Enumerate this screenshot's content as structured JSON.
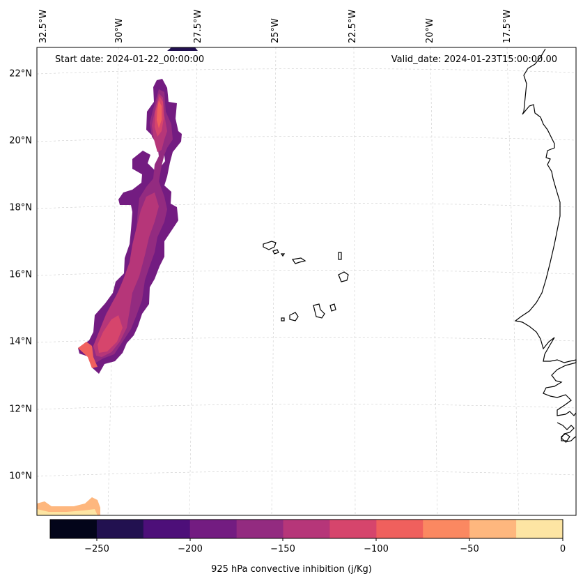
{
  "map": {
    "start_date": "Start date: 2024-01-22_00:00:00",
    "valid_date": "Valid_date: 2024-01-23T15:00:00.00",
    "lat_labels": [
      "22°N",
      "20°N",
      "18°N",
      "16°N",
      "14°N",
      "12°N",
      "10°N"
    ],
    "lon_labels": [
      "32.5°W",
      "30°W",
      "27.5°W",
      "25°W",
      "22.5°W",
      "20°W",
      "17.5°W"
    ],
    "coastline_color": "#000000",
    "grid_color": "#cccccc"
  },
  "colorbar": {
    "title": "925 hPa convective inhibition (j/Kg)",
    "tick_labels": [
      "−250",
      "−200",
      "−150",
      "−100",
      "−50",
      "0"
    ],
    "levels": [
      -275,
      -250,
      -225,
      -200,
      -175,
      -150,
      -125,
      -100,
      -75,
      -50,
      -25,
      0
    ],
    "colors": [
      "#03051a",
      "#221150",
      "#4d0f79",
      "#731c81",
      "#932b80",
      "#b63679",
      "#d6456c",
      "#f0605d",
      "#fb8861",
      "#feb77e",
      "#fde5a3"
    ]
  }
}
